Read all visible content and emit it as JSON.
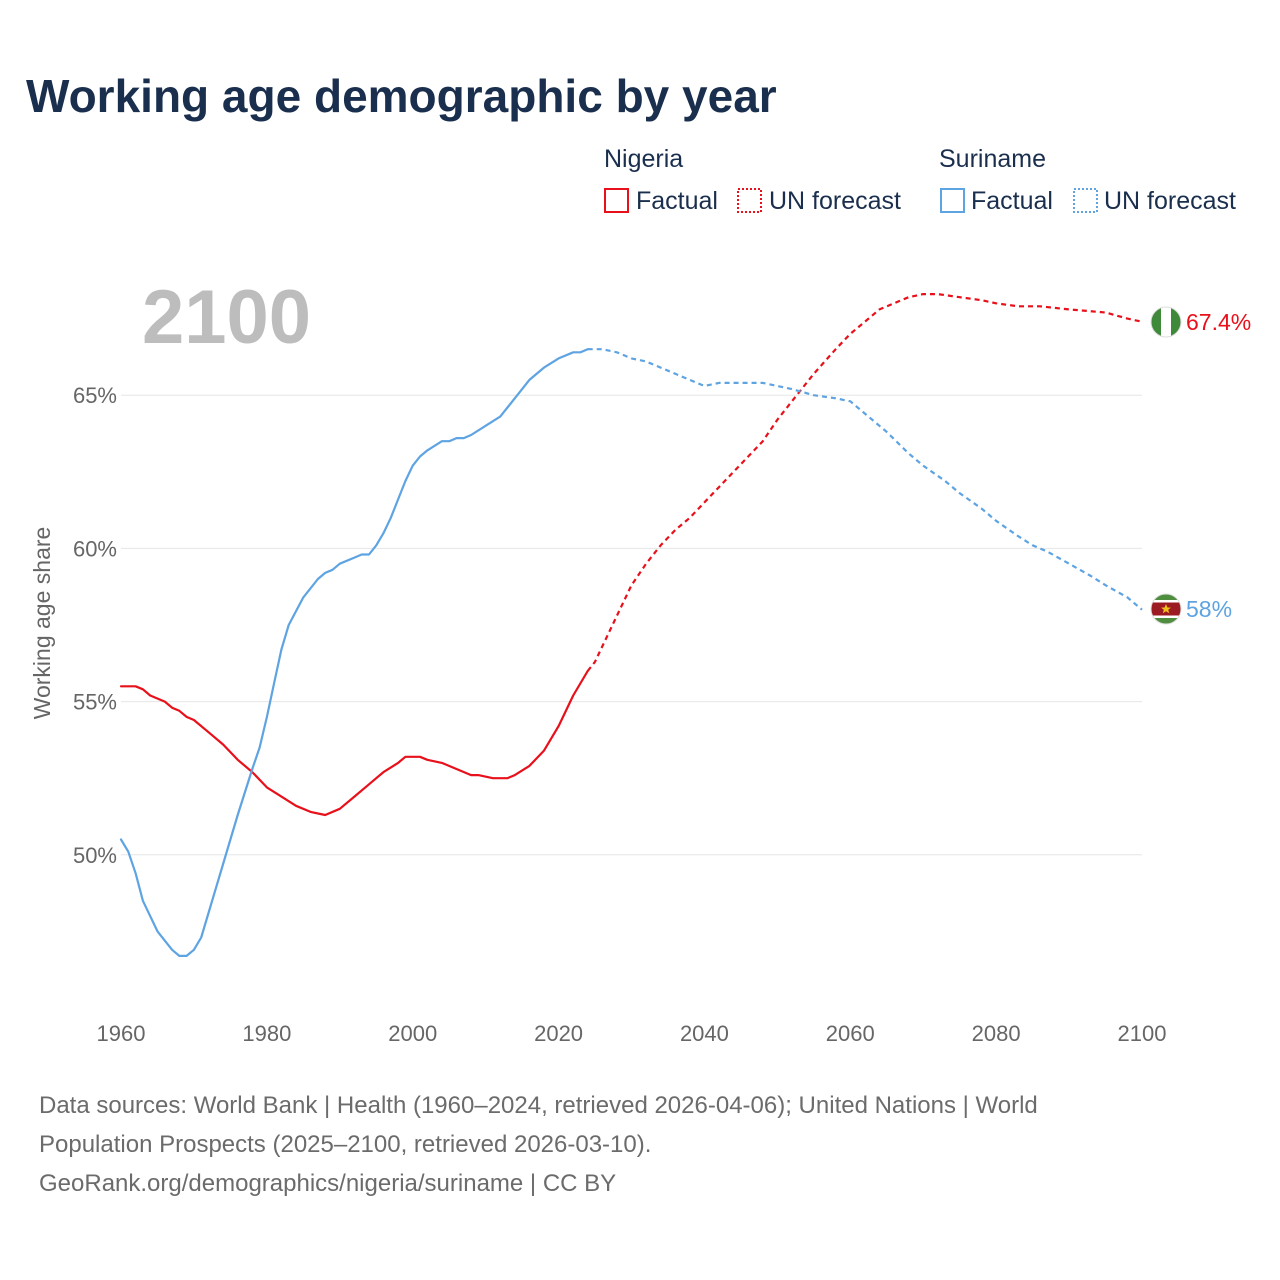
{
  "title": "Working age demographic by year",
  "current_year": "2100",
  "legend": {
    "groups": [
      {
        "country": "Nigeria",
        "factual_label": "Factual",
        "forecast_label": "UN forecast",
        "color": "#e8101a"
      },
      {
        "country": "Suriname",
        "factual_label": "Factual",
        "forecast_label": "UN forecast",
        "color": "#5ea3e2"
      }
    ]
  },
  "end_labels": {
    "nigeria": "67.4%",
    "suriname": "58%"
  },
  "source": {
    "line1": "Data sources: World Bank | Health (1960–2024, retrieved 2026-04-06); United Nations | World",
    "line2": "Population Prospects (2025–2100, retrieved 2026-03-10).",
    "line3": "GeoRank.org/demographics/nigeria/suriname | CC BY"
  },
  "chart_data": {
    "type": "line",
    "title": "Working age demographic by year",
    "xlabel": "",
    "ylabel": "Working age share",
    "xlim": [
      1960,
      2100
    ],
    "ylim": [
      45,
      70
    ],
    "x_ticks": [
      1960,
      1980,
      2000,
      2020,
      2040,
      2060,
      2080,
      2100
    ],
    "y_ticks": [
      50,
      55,
      60,
      65
    ],
    "y_tick_labels": [
      "50%",
      "55%",
      "60%",
      "65%"
    ],
    "factual_end_year": 2024,
    "series": [
      {
        "name": "Nigeria",
        "color": "#e8101a",
        "x": [
          1960,
          1962,
          1963,
          1964,
          1966,
          1967,
          1968,
          1969,
          1970,
          1972,
          1974,
          1976,
          1978,
          1980,
          1982,
          1984,
          1986,
          1988,
          1990,
          1992,
          1994,
          1996,
          1998,
          1999,
          2001,
          2002,
          2004,
          2006,
          2008,
          2009,
          2011,
          2012,
          2013,
          2014,
          2016,
          2018,
          2020,
          2022,
          2024,
          2025,
          2026,
          2028,
          2030,
          2032,
          2034,
          2036,
          2038,
          2040,
          2042,
          2044,
          2046,
          2048,
          2050,
          2052,
          2055,
          2058,
          2060,
          2062,
          2064,
          2066,
          2068,
          2070,
          2072,
          2075,
          2078,
          2080,
          2083,
          2086,
          2090,
          2095,
          2098,
          2100
        ],
        "y": [
          55.5,
          55.5,
          55.4,
          55.2,
          55.0,
          54.8,
          54.7,
          54.5,
          54.4,
          54.0,
          53.6,
          53.1,
          52.7,
          52.2,
          51.9,
          51.6,
          51.4,
          51.3,
          51.5,
          51.9,
          52.3,
          52.7,
          53.0,
          53.2,
          53.2,
          53.1,
          53.0,
          52.8,
          52.6,
          52.6,
          52.5,
          52.5,
          52.5,
          52.6,
          52.9,
          53.4,
          54.2,
          55.2,
          56.0,
          56.3,
          56.8,
          57.8,
          58.8,
          59.5,
          60.1,
          60.6,
          61.0,
          61.5,
          62.0,
          62.5,
          63.0,
          63.5,
          64.2,
          64.8,
          65.7,
          66.5,
          67.0,
          67.4,
          67.8,
          68.0,
          68.2,
          68.3,
          68.3,
          68.2,
          68.1,
          68.0,
          67.9,
          67.9,
          67.8,
          67.7,
          67.5,
          67.4
        ]
      },
      {
        "name": "Suriname",
        "color": "#5ea3e2",
        "x": [
          1960,
          1961,
          1962,
          1963,
          1965,
          1967,
          1968,
          1969,
          1970,
          1971,
          1972,
          1974,
          1976,
          1978,
          1979,
          1980,
          1981,
          1982,
          1983,
          1985,
          1987,
          1988,
          1989,
          1990,
          1992,
          1993,
          1994,
          1995,
          1996,
          1997,
          1998,
          1999,
          2000,
          2001,
          2002,
          2004,
          2005,
          2006,
          2007,
          2008,
          2010,
          2012,
          2014,
          2016,
          2018,
          2020,
          2022,
          2023,
          2024,
          2025,
          2026,
          2028,
          2030,
          2032,
          2035,
          2038,
          2040,
          2042,
          2045,
          2048,
          2050,
          2052,
          2055,
          2058,
          2060,
          2062,
          2065,
          2068,
          2070,
          2073,
          2075,
          2078,
          2080,
          2083,
          2085,
          2087,
          2090,
          2093,
          2095,
          2098,
          2100
        ],
        "y": [
          50.5,
          50.1,
          49.4,
          48.5,
          47.5,
          46.9,
          46.7,
          46.7,
          46.9,
          47.3,
          48.1,
          49.7,
          51.3,
          52.8,
          53.5,
          54.5,
          55.6,
          56.7,
          57.5,
          58.4,
          59.0,
          59.2,
          59.3,
          59.5,
          59.7,
          59.8,
          59.8,
          60.1,
          60.5,
          61.0,
          61.6,
          62.2,
          62.7,
          63.0,
          63.2,
          63.5,
          63.5,
          63.6,
          63.6,
          63.7,
          64.0,
          64.3,
          64.9,
          65.5,
          65.9,
          66.2,
          66.4,
          66.4,
          66.5,
          66.5,
          66.5,
          66.4,
          66.2,
          66.1,
          65.8,
          65.5,
          65.3,
          65.4,
          65.4,
          65.4,
          65.3,
          65.2,
          65.0,
          64.9,
          64.8,
          64.4,
          63.8,
          63.1,
          62.7,
          62.2,
          61.8,
          61.3,
          60.9,
          60.4,
          60.1,
          59.9,
          59.5,
          59.1,
          58.8,
          58.4,
          58.0
        ]
      }
    ]
  }
}
